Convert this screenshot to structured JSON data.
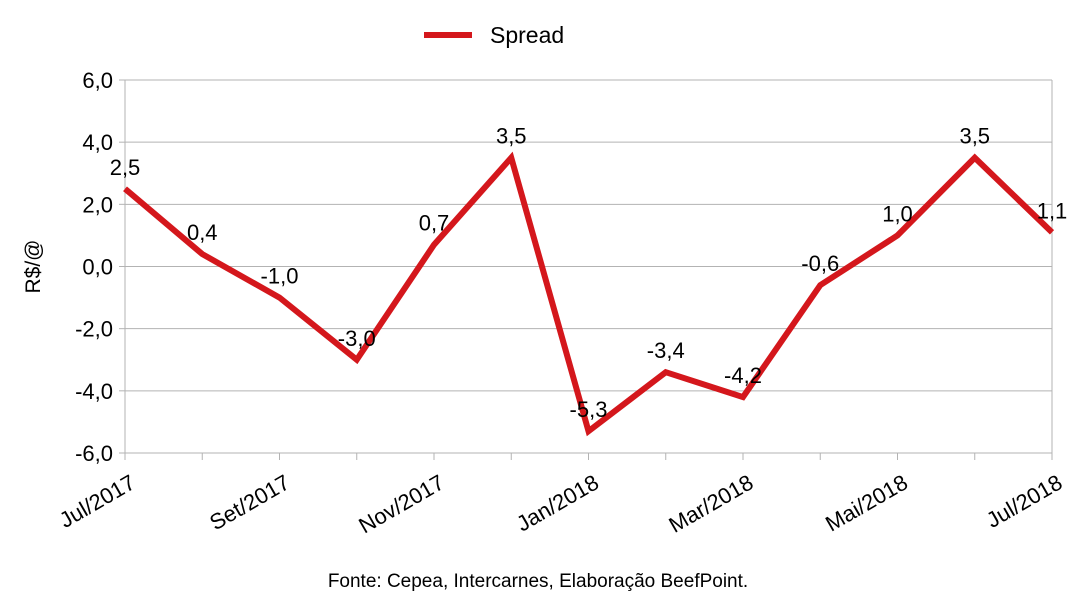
{
  "chart_data": {
    "type": "line",
    "ylabel": "R$/@",
    "xlabel": "",
    "ylim": [
      -6.0,
      6.0
    ],
    "yticks": [
      "-6,0",
      "-4,0",
      "-2,0",
      "0,0",
      "2,0",
      "4,0",
      "6,0"
    ],
    "ytick_values": [
      -6,
      -4,
      -2,
      0,
      2,
      4,
      6
    ],
    "categories": [
      "Jul/2017",
      "Ago/2017",
      "Set/2017",
      "Out/2017",
      "Nov/2017",
      "Dez/2017",
      "Jan/2018",
      "Fev/2018",
      "Mar/2018",
      "Abr/2018",
      "Mai/2018",
      "Jun/2018",
      "Jul/2018"
    ],
    "visible_xtick_labels": [
      "Jul/2017",
      "",
      "Set/2017",
      "",
      "Nov/2017",
      "",
      "Jan/2018",
      "",
      "Mar/2018",
      "",
      "Mai/2018",
      "",
      "Jul/2018"
    ],
    "series": [
      {
        "name": "Spread",
        "color": "#d4171c",
        "values": [
          2.5,
          0.4,
          -1.0,
          -3.0,
          0.7,
          3.5,
          -5.3,
          -3.4,
          -4.2,
          -0.6,
          1.0,
          3.5,
          1.1
        ],
        "data_labels": [
          "2,5",
          "0,4",
          "-1,0",
          "-3,0",
          "0,7",
          "3,5",
          "-5,3",
          "-3,4",
          "-4,2",
          "-0,6",
          "1,0",
          "3,5",
          "1,1"
        ]
      }
    ],
    "grid": true,
    "legend": "top-center"
  },
  "source_note": "Fonte: Cepea, Intercarnes, Elaboração BeefPoint."
}
